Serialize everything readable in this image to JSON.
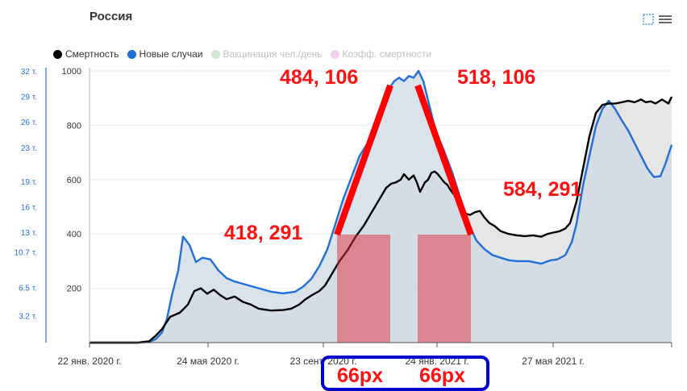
{
  "title": "Россия",
  "legend": [
    {
      "label": "Смертность",
      "color": "#000000",
      "enabled": true
    },
    {
      "label": "Новые случаи",
      "color": "#1f6fd8",
      "enabled": true
    },
    {
      "label": "Вакцинация чел./день",
      "color": "#cfe8d2",
      "enabled": false
    },
    {
      "label": "Коэфф. смертности",
      "color": "#f5d0f0",
      "enabled": false
    }
  ],
  "menu_icons": [
    "fullscreen-icon",
    "hamburger-menu-icon"
  ],
  "chart_data": {
    "type": "area",
    "x_tick_labels": [
      "22 янв. 2020 г.",
      "24 мая 2020 г.",
      "23 сент. 2020 г.",
      "24 янв. 2021 г.",
      "27 мая 2021 г."
    ],
    "y_left": {
      "ticks": [
        "1000",
        "800",
        "600",
        "400",
        "200"
      ],
      "range": [
        0,
        1000
      ]
    },
    "y_right": {
      "ticks": [
        "32 т.",
        "29 т.",
        "26 т.",
        "23 т.",
        "19 т.",
        "16 т.",
        "13 т.",
        "10.7 т.",
        "6.5 т.",
        "3.2 т."
      ],
      "range": [
        0,
        32000
      ]
    },
    "series": [
      {
        "name": "Смертность",
        "axis": "left",
        "color": "#000000",
        "fill": "#e2e2e2",
        "points": [
          [
            0,
            0
          ],
          [
            60,
            0
          ],
          [
            74,
            5
          ],
          [
            82,
            25
          ],
          [
            90,
            50
          ],
          [
            100,
            95
          ],
          [
            112,
            110
          ],
          [
            122,
            140
          ],
          [
            130,
            190
          ],
          [
            138,
            200
          ],
          [
            146,
            180
          ],
          [
            154,
            195
          ],
          [
            162,
            175
          ],
          [
            170,
            160
          ],
          [
            180,
            170
          ],
          [
            190,
            150
          ],
          [
            200,
            140
          ],
          [
            210,
            125
          ],
          [
            225,
            118
          ],
          [
            240,
            120
          ],
          [
            250,
            125
          ],
          [
            260,
            140
          ],
          [
            268,
            160
          ],
          [
            276,
            175
          ],
          [
            285,
            190
          ],
          [
            292,
            210
          ],
          [
            300,
            250
          ],
          [
            310,
            300
          ],
          [
            320,
            340
          ],
          [
            330,
            390
          ],
          [
            340,
            430
          ],
          [
            350,
            480
          ],
          [
            360,
            530
          ],
          [
            368,
            570
          ],
          [
            374,
            585
          ],
          [
            380,
            590
          ],
          [
            386,
            600
          ],
          [
            390,
            620
          ],
          [
            396,
            600
          ],
          [
            402,
            615
          ],
          [
            406,
            590
          ],
          [
            410,
            555
          ],
          [
            416,
            590
          ],
          [
            420,
            600
          ],
          [
            424,
            625
          ],
          [
            428,
            630
          ],
          [
            432,
            620
          ],
          [
            436,
            605
          ],
          [
            440,
            590
          ],
          [
            444,
            580
          ],
          [
            448,
            560
          ],
          [
            452,
            545
          ],
          [
            456,
            520
          ],
          [
            460,
            490
          ],
          [
            466,
            475
          ],
          [
            472,
            470
          ],
          [
            478,
            480
          ],
          [
            484,
            485
          ],
          [
            490,
            460
          ],
          [
            496,
            440
          ],
          [
            502,
            430
          ],
          [
            510,
            410
          ],
          [
            520,
            400
          ],
          [
            530,
            395
          ],
          [
            540,
            392
          ],
          [
            550,
            395
          ],
          [
            560,
            390
          ],
          [
            568,
            400
          ],
          [
            575,
            405
          ],
          [
            583,
            410
          ],
          [
            590,
            420
          ],
          [
            596,
            440
          ],
          [
            604,
            520
          ],
          [
            612,
            640
          ],
          [
            620,
            760
          ],
          [
            628,
            845
          ],
          [
            636,
            875
          ],
          [
            644,
            880
          ],
          [
            652,
            880
          ],
          [
            660,
            885
          ],
          [
            668,
            890
          ],
          [
            676,
            885
          ],
          [
            684,
            895
          ],
          [
            690,
            885
          ],
          [
            696,
            888
          ],
          [
            702,
            880
          ],
          [
            710,
            895
          ],
          [
            718,
            880
          ],
          [
            722,
            905
          ]
        ]
      },
      {
        "name": "Новые случаи",
        "axis": "right",
        "color": "#1f6fd8",
        "fill": "#cdd8e6",
        "points": [
          [
            0,
            0
          ],
          [
            60,
            0
          ],
          [
            74,
            80
          ],
          [
            82,
            400
          ],
          [
            90,
            1200
          ],
          [
            96,
            2800
          ],
          [
            102,
            5500
          ],
          [
            110,
            8500
          ],
          [
            116,
            12500
          ],
          [
            124,
            11500
          ],
          [
            132,
            9500
          ],
          [
            140,
            10000
          ],
          [
            150,
            9800
          ],
          [
            160,
            8500
          ],
          [
            170,
            7600
          ],
          [
            180,
            7200
          ],
          [
            195,
            6800
          ],
          [
            210,
            6400
          ],
          [
            225,
            6000
          ],
          [
            240,
            5800
          ],
          [
            255,
            6000
          ],
          [
            265,
            6600
          ],
          [
            275,
            7500
          ],
          [
            285,
            9000
          ],
          [
            295,
            11000
          ],
          [
            305,
            14000
          ],
          [
            315,
            17000
          ],
          [
            325,
            19500
          ],
          [
            335,
            22000
          ],
          [
            345,
            23500
          ],
          [
            352,
            25000
          ],
          [
            360,
            27000
          ],
          [
            366,
            28500
          ],
          [
            372,
            30000
          ],
          [
            378,
            30800
          ],
          [
            384,
            31200
          ],
          [
            390,
            30800
          ],
          [
            396,
            31400
          ],
          [
            402,
            31200
          ],
          [
            408,
            32000
          ],
          [
            414,
            30800
          ],
          [
            420,
            28500
          ],
          [
            426,
            26200
          ],
          [
            432,
            24300
          ],
          [
            440,
            22500
          ],
          [
            450,
            20000
          ],
          [
            460,
            17000
          ],
          [
            470,
            14000
          ],
          [
            480,
            12000
          ],
          [
            490,
            11000
          ],
          [
            500,
            10300
          ],
          [
            510,
            10000
          ],
          [
            520,
            9700
          ],
          [
            530,
            9600
          ],
          [
            545,
            9600
          ],
          [
            560,
            9300
          ],
          [
            572,
            9700
          ],
          [
            580,
            9800
          ],
          [
            590,
            10300
          ],
          [
            598,
            11800
          ],
          [
            604,
            14000
          ],
          [
            612,
            18500
          ],
          [
            620,
            22000
          ],
          [
            628,
            25500
          ],
          [
            636,
            27500
          ],
          [
            644,
            28500
          ],
          [
            652,
            27500
          ],
          [
            660,
            26200
          ],
          [
            668,
            25000
          ],
          [
            676,
            23500
          ],
          [
            684,
            22000
          ],
          [
            692,
            20500
          ],
          [
            700,
            19500
          ],
          [
            708,
            19600
          ],
          [
            714,
            21000
          ],
          [
            722,
            23300
          ]
        ]
      }
    ]
  },
  "annotations": {
    "labels": [
      "484, 106",
      "518, 106",
      "418, 291",
      "584, 291"
    ],
    "bottom_labels": [
      "66px",
      "66px"
    ]
  }
}
